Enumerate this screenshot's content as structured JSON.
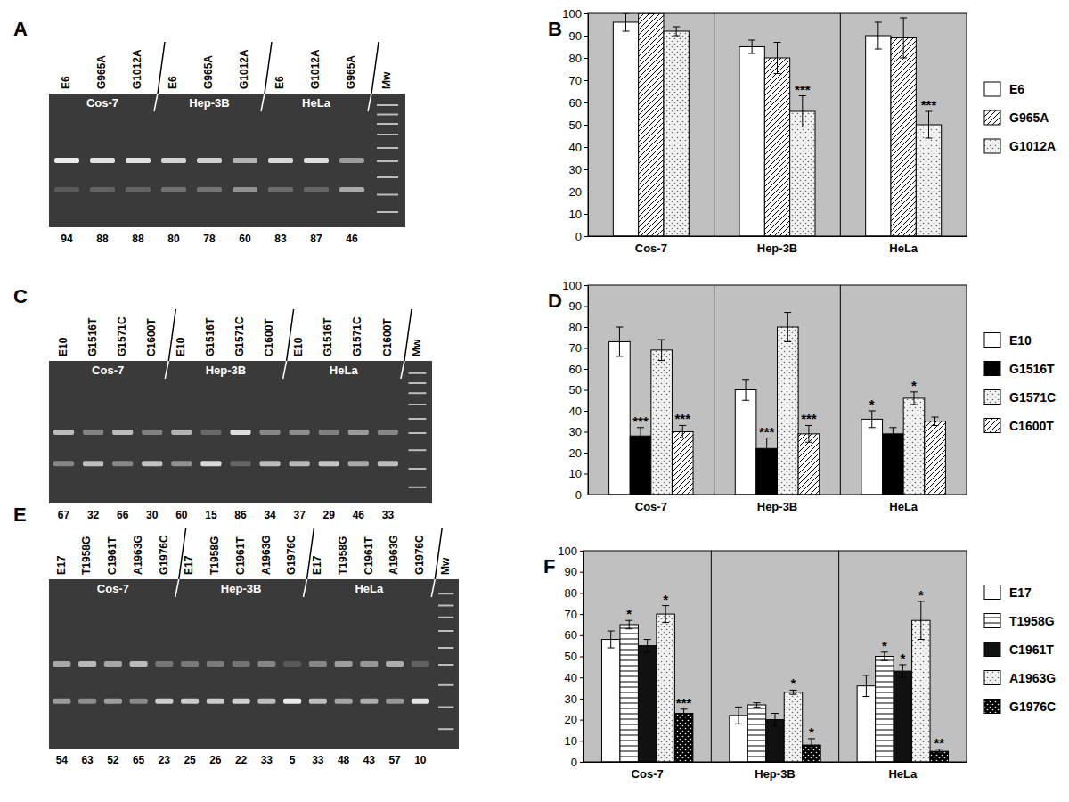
{
  "gels": [
    {
      "title": "A",
      "marker_lane": "Mw",
      "groups": [
        {
          "name": "Cos-7",
          "lanes": [
            "E6",
            "G965A",
            "G1012A"
          ],
          "values": [
            94,
            88,
            88
          ]
        },
        {
          "name": "Hep-3B",
          "lanes": [
            "E6",
            "G965A",
            "G1012A"
          ],
          "values": [
            80,
            78,
            60
          ]
        },
        {
          "name": "HeLa",
          "lanes": [
            "E6",
            "G1012A",
            "G965A"
          ],
          "values": [
            83,
            87,
            46
          ]
        }
      ]
    },
    {
      "title": "C",
      "marker_lane": "Mw",
      "groups": [
        {
          "name": "Cos-7",
          "lanes": [
            "E10",
            "G1516T",
            "G1571C",
            "C1600T"
          ],
          "values": [
            67,
            32,
            66,
            30
          ]
        },
        {
          "name": "Hep-3B",
          "lanes": [
            "E10",
            "G1516T",
            "G1571C",
            "C1600T"
          ],
          "values": [
            60,
            15,
            86,
            34
          ]
        },
        {
          "name": "HeLa",
          "lanes": [
            "E10",
            "G1516T",
            "G1571C",
            "C1600T"
          ],
          "values": [
            37,
            29,
            46,
            33
          ]
        }
      ]
    },
    {
      "title": "E",
      "marker_lane": "Mw",
      "groups": [
        {
          "name": "Cos-7",
          "lanes": [
            "E17",
            "T1958G",
            "C1961T",
            "A1963G",
            "G1976C"
          ],
          "values": [
            54,
            63,
            52,
            65,
            23
          ]
        },
        {
          "name": "Hep-3B",
          "lanes": [
            "E17",
            "T1958G",
            "C1961T",
            "A1963G",
            "G1976C"
          ],
          "values": [
            25,
            26,
            22,
            33,
            5
          ]
        },
        {
          "name": "HeLa",
          "lanes": [
            "E17",
            "T1958G",
            "C1961T",
            "A1963G",
            "G1976C"
          ],
          "values": [
            33,
            48,
            43,
            57,
            10
          ]
        }
      ]
    }
  ],
  "chart_data": [
    {
      "type": "bar",
      "title": "B",
      "categories": [
        "Cos-7",
        "Hep-3B",
        "HeLa"
      ],
      "ylim": [
        0,
        100
      ],
      "yticks": [
        0,
        10,
        20,
        30,
        40,
        50,
        60,
        70,
        80,
        90,
        100
      ],
      "grid": false,
      "legend": "right",
      "series": [
        {
          "name": "E6",
          "color": "#ffffff",
          "marker": "solid",
          "values": [
            96,
            85,
            90
          ],
          "errors": [
            4,
            3,
            6
          ],
          "annotations": [
            null,
            null,
            null
          ]
        },
        {
          "name": "G965A",
          "color": "#ffffff",
          "marker": "diagonal",
          "values": [
            100,
            80,
            89
          ],
          "errors": [
            0,
            7,
            9
          ],
          "annotations": [
            null,
            null,
            null
          ]
        },
        {
          "name": "G1012A",
          "color": "#f2f2f2",
          "marker": "dots",
          "values": [
            92,
            56,
            50
          ],
          "errors": [
            2,
            7,
            6
          ],
          "annotations": [
            null,
            "***",
            "***"
          ]
        }
      ]
    },
    {
      "type": "bar",
      "title": "D",
      "categories": [
        "Cos-7",
        "Hep-3B",
        "HeLa"
      ],
      "ylim": [
        0,
        100
      ],
      "yticks": [
        0,
        10,
        20,
        30,
        40,
        50,
        60,
        70,
        80,
        90,
        100
      ],
      "grid": false,
      "legend": "right",
      "series": [
        {
          "name": "E10",
          "color": "#ffffff",
          "marker": "solid",
          "values": [
            73,
            50,
            36
          ],
          "errors": [
            7,
            5,
            4
          ],
          "annotations": [
            null,
            null,
            "*"
          ]
        },
        {
          "name": "G1516T",
          "color": "#000000",
          "marker": "solid",
          "values": [
            28,
            22,
            29
          ],
          "errors": [
            4,
            5,
            3
          ],
          "annotations": [
            "***",
            "***",
            null
          ]
        },
        {
          "name": "G1571C",
          "color": "#f2f2f2",
          "marker": "dots",
          "values": [
            69,
            80,
            46
          ],
          "errors": [
            5,
            7,
            3
          ],
          "annotations": [
            null,
            null,
            "*"
          ]
        },
        {
          "name": "C1600T",
          "color": "#ffffff",
          "marker": "diagonal",
          "values": [
            30,
            29,
            35
          ],
          "errors": [
            3,
            4,
            2
          ],
          "annotations": [
            "***",
            "***",
            null
          ]
        }
      ]
    },
    {
      "type": "bar",
      "title": "F",
      "categories": [
        "Cos-7",
        "Hep-3B",
        "HeLa"
      ],
      "ylim": [
        0,
        100
      ],
      "yticks": [
        0,
        10,
        20,
        30,
        40,
        50,
        60,
        70,
        80,
        90,
        100
      ],
      "grid": false,
      "legend": "right",
      "series": [
        {
          "name": "E17",
          "color": "#ffffff",
          "marker": "solid",
          "values": [
            58,
            22,
            36
          ],
          "errors": [
            4,
            4,
            5
          ],
          "annotations": [
            null,
            null,
            null
          ]
        },
        {
          "name": "T1958G",
          "color": "#ffffff",
          "marker": "horizontal",
          "values": [
            65,
            27,
            50
          ],
          "errors": [
            2,
            1,
            2
          ],
          "annotations": [
            "*",
            null,
            "*"
          ]
        },
        {
          "name": "C1961T",
          "color": "#111111",
          "marker": "solid",
          "values": [
            55,
            20,
            43
          ],
          "errors": [
            3,
            3,
            3
          ],
          "annotations": [
            null,
            null,
            "*"
          ]
        },
        {
          "name": "A1963G",
          "color": "#f2f2f2",
          "marker": "dots",
          "values": [
            70,
            33,
            67
          ],
          "errors": [
            4,
            1,
            9
          ],
          "annotations": [
            "*",
            "*",
            "*"
          ]
        },
        {
          "name": "G1976C",
          "color": "#000000",
          "marker": "dots",
          "values": [
            23,
            8,
            5
          ],
          "errors": [
            2,
            3,
            1
          ],
          "annotations": [
            "***",
            "*",
            "**"
          ]
        }
      ]
    }
  ]
}
